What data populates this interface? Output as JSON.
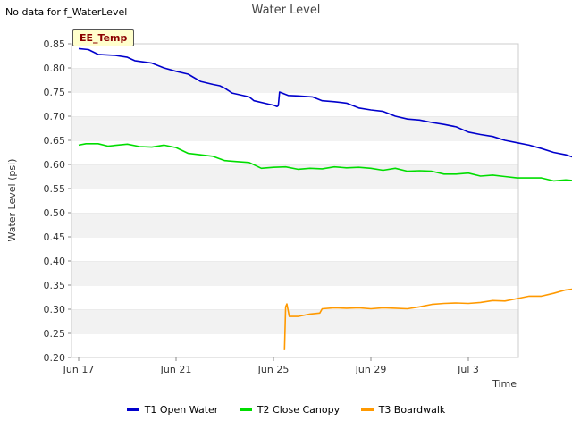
{
  "note": "No data for f_WaterLevel",
  "badge": "EE_Temp",
  "chart_data": {
    "type": "line",
    "title": "Water Level",
    "xlabel": "Time",
    "ylabel": "Water Level (psi)",
    "x_ticks": [
      "Jun 17",
      "Jun 21",
      "Jun 25",
      "Jun 29",
      "Jul 3"
    ],
    "ylim": [
      0.2,
      0.85
    ],
    "yticks": [
      "0.20",
      "0.25",
      "0.30",
      "0.35",
      "0.40",
      "0.45",
      "0.50",
      "0.55",
      "0.60",
      "0.65",
      "0.70",
      "0.75",
      "0.80",
      "0.85"
    ],
    "grid": "horizontal bands",
    "legend": "bottom",
    "series": [
      {
        "name": "T1 Open Water",
        "color": "#0000cc",
        "points": [
          [
            0.0,
            0.84
          ],
          [
            0.4,
            0.838
          ],
          [
            0.8,
            0.828
          ],
          [
            1.5,
            0.826
          ],
          [
            2.0,
            0.822
          ],
          [
            2.3,
            0.815
          ],
          [
            3.0,
            0.81
          ],
          [
            3.5,
            0.8
          ],
          [
            4.0,
            0.793
          ],
          [
            4.5,
            0.787
          ],
          [
            5.0,
            0.772
          ],
          [
            5.5,
            0.766
          ],
          [
            5.8,
            0.763
          ],
          [
            6.0,
            0.758
          ],
          [
            6.3,
            0.748
          ],
          [
            7.0,
            0.74
          ],
          [
            7.2,
            0.732
          ],
          [
            7.8,
            0.725
          ],
          [
            8.0,
            0.723
          ],
          [
            8.15,
            0.72
          ],
          [
            8.2,
            0.722
          ],
          [
            8.25,
            0.75
          ],
          [
            8.6,
            0.743
          ],
          [
            9.0,
            0.742
          ],
          [
            9.6,
            0.74
          ],
          [
            10.0,
            0.732
          ],
          [
            10.5,
            0.73
          ],
          [
            11.0,
            0.727
          ],
          [
            11.5,
            0.717
          ],
          [
            12.0,
            0.713
          ],
          [
            12.5,
            0.71
          ],
          [
            13.0,
            0.7
          ],
          [
            13.5,
            0.694
          ],
          [
            14.0,
            0.692
          ],
          [
            14.5,
            0.687
          ],
          [
            15.0,
            0.683
          ],
          [
            15.5,
            0.678
          ],
          [
            16.0,
            0.667
          ],
          [
            16.5,
            0.662
          ],
          [
            17.0,
            0.658
          ],
          [
            17.5,
            0.65
          ],
          [
            18.0,
            0.645
          ],
          [
            18.5,
            0.64
          ],
          [
            19.0,
            0.633
          ],
          [
            19.5,
            0.625
          ],
          [
            20.0,
            0.62
          ],
          [
            20.5,
            0.612
          ],
          [
            21.0,
            0.607
          ],
          [
            21.5,
            0.601
          ],
          [
            22.0,
            0.59
          ],
          [
            22.5,
            0.587
          ],
          [
            22.75,
            0.585
          ],
          [
            22.85,
            0.625
          ],
          [
            23.2,
            0.63
          ],
          [
            23.8,
            0.631
          ]
        ]
      },
      {
        "name": "T2 Close Canopy",
        "color": "#00dd00",
        "points": [
          [
            0.0,
            0.64
          ],
          [
            0.3,
            0.643
          ],
          [
            0.8,
            0.643
          ],
          [
            1.2,
            0.638
          ],
          [
            2.0,
            0.642
          ],
          [
            2.5,
            0.637
          ],
          [
            3.0,
            0.636
          ],
          [
            3.5,
            0.64
          ],
          [
            4.0,
            0.635
          ],
          [
            4.5,
            0.623
          ],
          [
            5.0,
            0.62
          ],
          [
            5.5,
            0.617
          ],
          [
            6.0,
            0.608
          ],
          [
            6.5,
            0.606
          ],
          [
            7.0,
            0.604
          ],
          [
            7.5,
            0.592
          ],
          [
            8.0,
            0.594
          ],
          [
            8.5,
            0.595
          ],
          [
            9.0,
            0.59
          ],
          [
            9.5,
            0.592
          ],
          [
            10.0,
            0.591
          ],
          [
            10.5,
            0.595
          ],
          [
            11.0,
            0.593
          ],
          [
            11.5,
            0.594
          ],
          [
            12.0,
            0.592
          ],
          [
            12.5,
            0.588
          ],
          [
            13.0,
            0.592
          ],
          [
            13.5,
            0.586
          ],
          [
            14.0,
            0.587
          ],
          [
            14.5,
            0.586
          ],
          [
            15.0,
            0.58
          ],
          [
            15.5,
            0.58
          ],
          [
            16.0,
            0.582
          ],
          [
            16.5,
            0.576
          ],
          [
            17.0,
            0.578
          ],
          [
            17.5,
            0.575
          ],
          [
            18.0,
            0.572
          ],
          [
            18.5,
            0.572
          ],
          [
            19.0,
            0.572
          ],
          [
            19.5,
            0.566
          ],
          [
            20.0,
            0.568
          ],
          [
            20.5,
            0.566
          ],
          [
            21.0,
            0.562
          ],
          [
            21.5,
            0.563
          ],
          [
            22.0,
            0.561
          ],
          [
            22.5,
            0.559
          ],
          [
            23.0,
            0.56
          ],
          [
            23.5,
            0.557
          ],
          [
            24.0,
            0.556
          ]
        ]
      },
      {
        "name": "T3 Boardwalk",
        "color": "#ff9900",
        "points": [
          [
            8.45,
            0.215
          ],
          [
            8.5,
            0.305
          ],
          [
            8.55,
            0.311
          ],
          [
            8.65,
            0.285
          ],
          [
            9.0,
            0.285
          ],
          [
            9.5,
            0.29
          ],
          [
            9.9,
            0.292
          ],
          [
            10.0,
            0.301
          ],
          [
            10.5,
            0.303
          ],
          [
            11.0,
            0.302
          ],
          [
            11.5,
            0.303
          ],
          [
            12.0,
            0.301
          ],
          [
            12.5,
            0.303
          ],
          [
            13.0,
            0.302
          ],
          [
            13.5,
            0.301
          ],
          [
            14.0,
            0.305
          ],
          [
            14.5,
            0.31
          ],
          [
            15.0,
            0.312
          ],
          [
            15.5,
            0.313
          ],
          [
            16.0,
            0.312
          ],
          [
            16.5,
            0.314
          ],
          [
            17.0,
            0.318
          ],
          [
            17.5,
            0.317
          ],
          [
            18.0,
            0.322
          ],
          [
            18.5,
            0.327
          ],
          [
            19.0,
            0.327
          ],
          [
            19.5,
            0.333
          ],
          [
            20.0,
            0.34
          ],
          [
            20.5,
            0.343
          ],
          [
            21.0,
            0.35
          ],
          [
            21.5,
            0.357
          ],
          [
            21.8,
            0.362
          ],
          [
            22.0,
            0.363
          ],
          [
            22.5,
            0.372
          ],
          [
            23.0,
            0.378
          ],
          [
            23.3,
            0.384
          ],
          [
            23.4,
            0.368
          ],
          [
            23.8,
            0.37
          ],
          [
            24.1,
            0.378
          ]
        ]
      }
    ]
  }
}
